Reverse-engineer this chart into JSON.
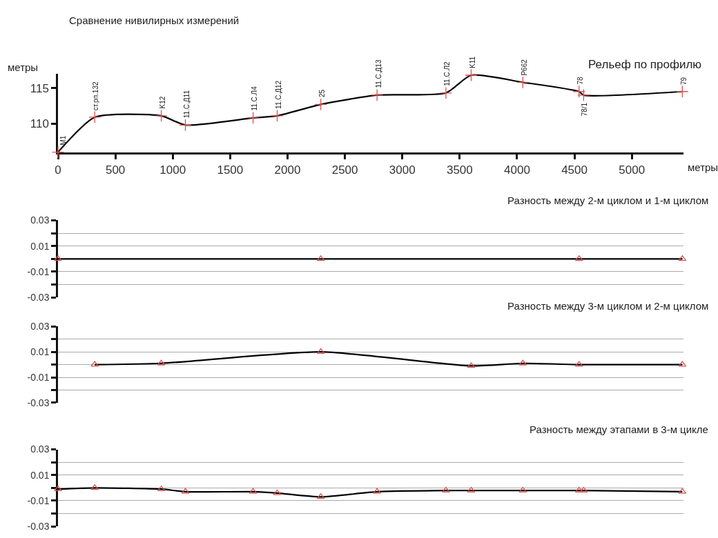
{
  "chart_data": [
    {
      "type": "line",
      "title": "Сравнение нивилирных измерений",
      "subtitle": "Рельеф по профилю",
      "xlabel": "метры",
      "ylabel": "метры",
      "xlim": [
        0,
        5450
      ],
      "xticks": [
        0,
        500,
        1000,
        1500,
        2000,
        2500,
        3000,
        3500,
        4000,
        4500,
        5000
      ],
      "ylim": [
        106,
        117
      ],
      "yticks": [
        110,
        115
      ],
      "grid": false,
      "series": [
        {
          "color": "#000000",
          "x": [
            0,
            320,
            900,
            1110,
            1700,
            1910,
            2290,
            2780,
            3380,
            3600,
            4050,
            4540,
            4580,
            5440
          ],
          "values": [
            106.0,
            110.9,
            111.1,
            109.8,
            110.8,
            111.1,
            112.7,
            114.0,
            114.3,
            116.8,
            115.8,
            114.5,
            114.0,
            114.5
          ]
        },
        {
          "type": "scatter",
          "marker": "cross",
          "color": "#d9534f",
          "x": [
            0,
            320,
            900,
            1110,
            1700,
            1910,
            2290,
            2780,
            3380,
            3600,
            4050,
            4540,
            4580,
            5440
          ],
          "values": [
            106.0,
            110.9,
            111.1,
            109.8,
            110.8,
            111.1,
            112.7,
            114.0,
            114.3,
            116.8,
            115.8,
            114.5,
            114.0,
            114.5
          ]
        }
      ],
      "annotations": [
        {
          "text": "M1",
          "x": 0,
          "y": 106.0
        },
        {
          "text": "ст.рп.132",
          "x": 320,
          "y": 110.9
        },
        {
          "text": "K12",
          "x": 900,
          "y": 111.1
        },
        {
          "text": "11.С.Д11",
          "x": 1110,
          "y": 109.8
        },
        {
          "text": "11.С.Л4",
          "x": 1700,
          "y": 110.8
        },
        {
          "text": "11.С.Д12",
          "x": 1910,
          "y": 111.1
        },
        {
          "text": "25",
          "x": 2290,
          "y": 112.7
        },
        {
          "text": "11.С.Д13",
          "x": 2780,
          "y": 114.0
        },
        {
          "text": "11.С.Л2",
          "x": 3380,
          "y": 114.3
        },
        {
          "text": "K11",
          "x": 3600,
          "y": 116.8
        },
        {
          "text": "Р662",
          "x": 4050,
          "y": 115.8
        },
        {
          "text": "78",
          "x": 4540,
          "y": 114.5
        },
        {
          "text": "78/1",
          "x": 4580,
          "y": 114.0
        },
        {
          "text": "79",
          "x": 5440,
          "y": 114.5
        }
      ]
    },
    {
      "type": "line",
      "title": "Разность между 2-м циклом и 1-м циклом",
      "xlim": [
        0,
        5450
      ],
      "ylim": [
        -0.03,
        0.03
      ],
      "grid": "y",
      "tick_labels": "y",
      "yticks": [
        0.03,
        {
          "value": 0.02,
          "label": null
        },
        0.01,
        {
          "value": 0,
          "label": null
        },
        -0.01,
        {
          "value": -0.02,
          "label": null
        },
        -0.03
      ],
      "series": [
        {
          "color": "#000000",
          "x": [
            0,
            2290,
            4540,
            5440
          ],
          "values": [
            0,
            0,
            0,
            0
          ]
        },
        {
          "type": "scatter",
          "marker": "triangle",
          "color": "#d9534f",
          "x": [
            0,
            2290,
            4540,
            5440
          ],
          "values": [
            0,
            0,
            0,
            0
          ]
        }
      ]
    },
    {
      "type": "line",
      "title": "Разность между 3-м циклом и 2-м циклом",
      "xlim": [
        0,
        5450
      ],
      "ylim": [
        -0.03,
        0.03
      ],
      "grid": "y",
      "tick_labels": "y",
      "yticks": [
        0.03,
        {
          "value": 0.02,
          "label": null
        },
        0.01,
        {
          "value": 0,
          "label": null
        },
        -0.01,
        {
          "value": -0.02,
          "label": null
        },
        -0.03
      ],
      "series": [
        {
          "color": "#000000",
          "x": [
            320,
            900,
            2290,
            3600,
            4050,
            4540,
            5440
          ],
          "values": [
            0,
            0.001,
            0.01,
            -0.001,
            0.001,
            0,
            0
          ]
        },
        {
          "type": "scatter",
          "marker": "triangle",
          "color": "#d9534f",
          "x": [
            320,
            900,
            2290,
            3600,
            4050,
            4540,
            5440
          ],
          "values": [
            0,
            0.001,
            0.01,
            -0.001,
            0.001,
            0,
            0
          ]
        }
      ]
    },
    {
      "type": "line",
      "title": "Разность между этапами в 3-м цикле",
      "xlim": [
        0,
        5450
      ],
      "ylim": [
        -0.03,
        0.03
      ],
      "grid": "y",
      "tick_labels": "y",
      "yticks": [
        0.03,
        {
          "value": 0.02,
          "label": null
        },
        0.01,
        {
          "value": 0,
          "label": null
        },
        -0.01,
        {
          "value": -0.02,
          "label": null
        },
        -0.03
      ],
      "series": [
        {
          "color": "#000000",
          "x": [
            0,
            320,
            900,
            1110,
            1700,
            1910,
            2290,
            2780,
            3380,
            3600,
            4050,
            4540,
            4580,
            5440
          ],
          "values": [
            -0.001,
            0,
            -0.001,
            -0.003,
            -0.003,
            -0.004,
            -0.007,
            -0.003,
            -0.002,
            -0.002,
            -0.002,
            -0.002,
            -0.002,
            -0.003
          ]
        },
        {
          "type": "scatter",
          "marker": "triangle",
          "color": "#d9534f",
          "x": [
            0,
            320,
            900,
            1110,
            1700,
            1910,
            2290,
            2780,
            3380,
            3600,
            4050,
            4540,
            4580,
            5440
          ],
          "values": [
            -0.001,
            0,
            -0.001,
            -0.003,
            -0.003,
            -0.004,
            -0.007,
            -0.003,
            -0.002,
            -0.002,
            -0.002,
            -0.002,
            -0.002,
            -0.003
          ]
        }
      ]
    }
  ]
}
